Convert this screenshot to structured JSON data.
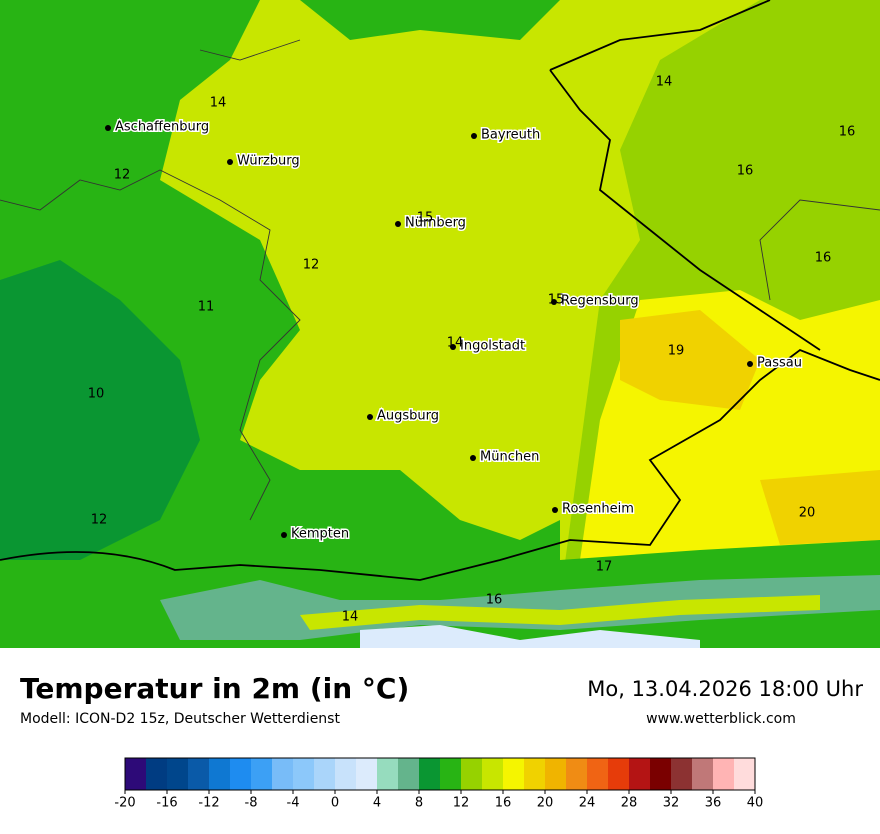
{
  "header": {
    "title": "Temperatur in 2m (in °C)",
    "subtitle": "Modell: ICON-D2 15z, Deutscher Wetterdienst",
    "datetime": "Mo, 13.04.2026 18:00 Uhr",
    "website": "www.wetterblick.com"
  },
  "cities": [
    "Aschaffenburg",
    "Würzburg",
    "Bayreuth",
    "Nürnberg",
    "Regensburg",
    "Ingolstadt",
    "Passau",
    "Augsburg",
    "München",
    "Rosenheim",
    "Kempten"
  ],
  "temperatures": [
    14,
    12,
    15,
    12,
    11,
    10,
    12,
    14,
    15,
    14,
    16,
    16,
    16,
    19,
    20,
    17,
    16,
    14
  ],
  "colorbar": {
    "lim": [
      -20,
      40
    ],
    "ticks": [
      -20,
      -16,
      -12,
      -8,
      -4,
      0,
      4,
      8,
      12,
      16,
      20,
      24,
      28,
      32,
      36,
      40
    ],
    "colors": [
      "#2d0a78",
      "#003c82",
      "#00468c",
      "#0a5aa8",
      "#0f78d2",
      "#1e8cf0",
      "#3ca0f5",
      "#78bcf8",
      "#8cc8fa",
      "#aad5fa",
      "#c8e2fb",
      "#dcebfc",
      "#96dcbe",
      "#64b48c",
      "#0a9632",
      "#28b414",
      "#96d200",
      "#c8e600",
      "#f5f500",
      "#f0d200",
      "#f0b400",
      "#f08c14",
      "#f06414",
      "#e63c0a",
      "#b41414",
      "#7a0000",
      "#8c3232",
      "#c07878",
      "#ffb4b4",
      "#ffdcdc"
    ]
  }
}
